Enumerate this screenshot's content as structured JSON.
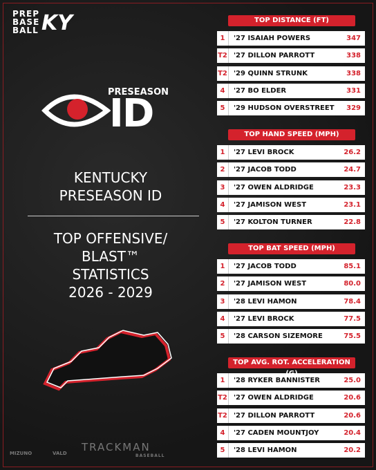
{
  "brand": {
    "lines": [
      "PREP",
      "BASE",
      "BALL"
    ],
    "mark": "KY"
  },
  "event_logo": {
    "small": "PRESEASON",
    "big": "ID"
  },
  "left": {
    "title": [
      "KENTUCKY",
      "PRESEASON ID"
    ],
    "subtitle": [
      "TOP OFFENSIVE/",
      "BLAST™",
      "STATISTICS",
      "2026 - 2029"
    ]
  },
  "footer": {
    "sponsors": [
      "MIZUNO",
      "VALD",
      "TRACKMAN"
    ],
    "trackman_sub": "BASEBALL"
  },
  "tables": [
    {
      "title": "TOP DISTANCE (FT)",
      "rows": [
        [
          "1",
          "'27 ISAIAH POWERS",
          "347"
        ],
        [
          "T2",
          "'27 DILLON PARROTT",
          "338"
        ],
        [
          "T2",
          "'29 QUINN STRUNK",
          "338"
        ],
        [
          "4",
          "'27 BO ELDER",
          "331"
        ],
        [
          "5",
          "'29 HUDSON OVERSTREET",
          "329"
        ]
      ]
    },
    {
      "title": "TOP HAND SPEED (MPH)",
      "rows": [
        [
          "1",
          "'27 LEVI BROCK",
          "26.2"
        ],
        [
          "2",
          "'27 JACOB TODD",
          "24.7"
        ],
        [
          "3",
          "'27 OWEN ALDRIDGE",
          "23.3"
        ],
        [
          "4",
          "'27 JAMISON WEST",
          "23.1"
        ],
        [
          "5",
          "'27 KOLTON TURNER",
          "22.8"
        ]
      ]
    },
    {
      "title": "TOP BAT SPEED (MPH)",
      "rows": [
        [
          "1",
          "'27 JACOB TODD",
          "85.1"
        ],
        [
          "2",
          "'27 JAMISON WEST",
          "80.0"
        ],
        [
          "3",
          "'28 LEVI HAMON",
          "78.4"
        ],
        [
          "4",
          "'27 LEVI BROCK",
          "77.5"
        ],
        [
          "5",
          "'28 CARSON SIZEMORE",
          "75.5"
        ]
      ]
    },
    {
      "title": "TOP AVG. ROT. ACCELERATION (G)",
      "rows": [
        [
          "1",
          "'28 RYKER BANNISTER",
          "25.0"
        ],
        [
          "T2",
          "'27 OWEN ALDRIDGE",
          "20.6"
        ],
        [
          "T2",
          "'27 DILLON PARROTT",
          "20.6"
        ],
        [
          "4",
          "'27 CADEN MOUNTJOY",
          "20.4"
        ],
        [
          "5",
          "'28 LEVI HAMON",
          "20.2"
        ]
      ]
    }
  ]
}
